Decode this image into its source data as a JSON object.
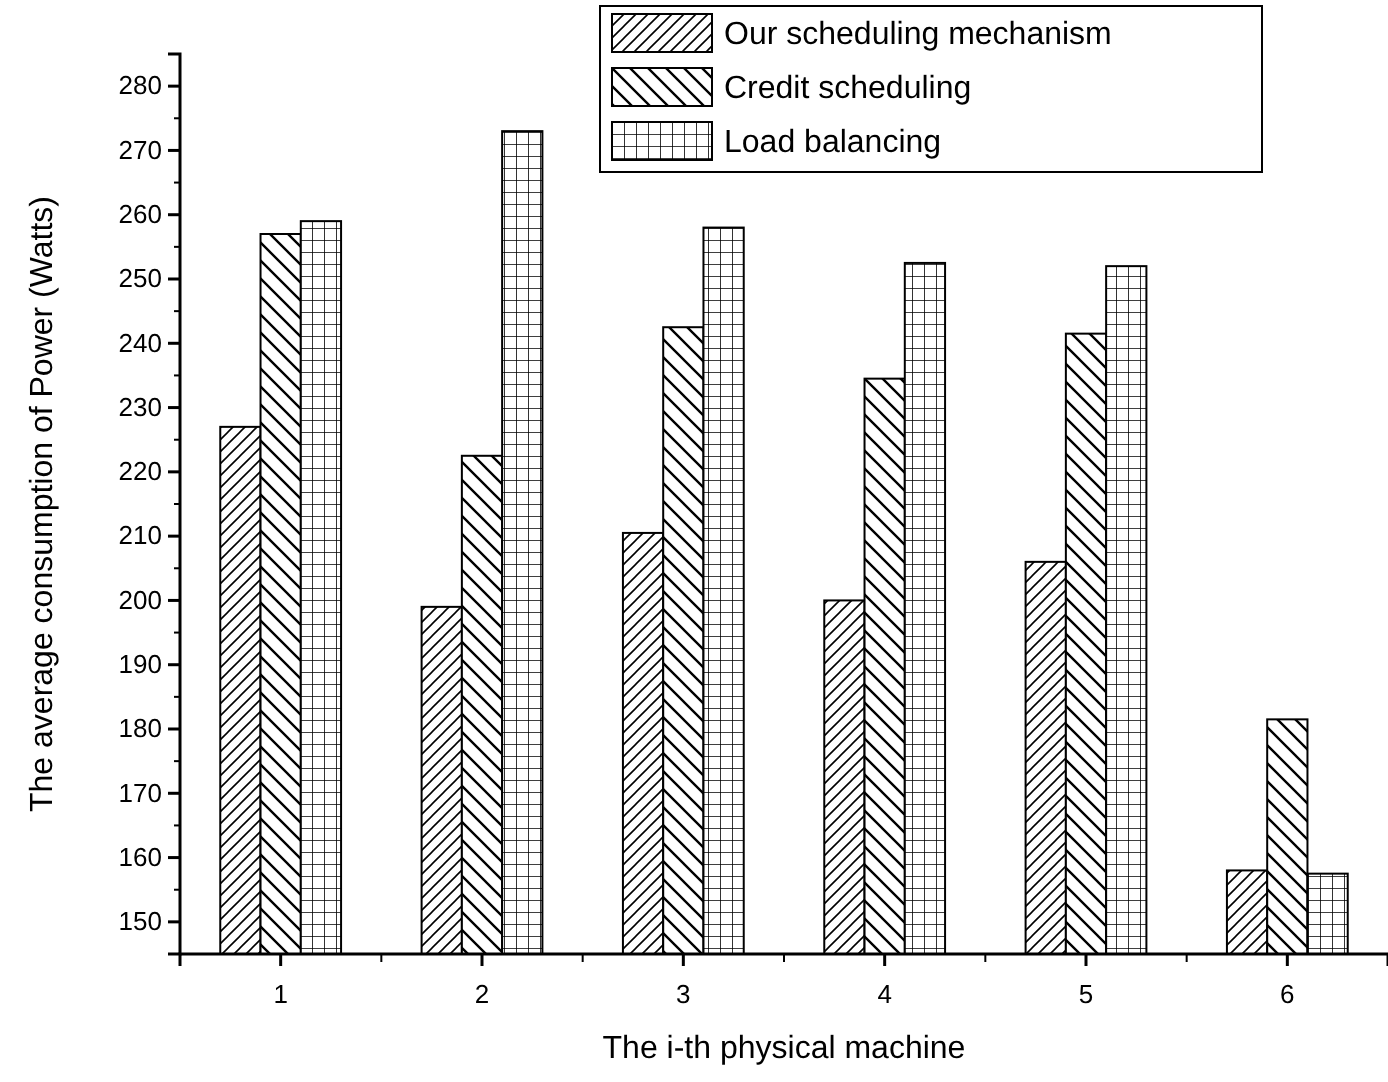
{
  "chart_data": {
    "type": "bar",
    "xlabel": "The i-th physical machine",
    "ylabel": "The average consumption of Power (Watts)",
    "categories": [
      "1",
      "2",
      "3",
      "4",
      "5",
      "6"
    ],
    "series": [
      {
        "name": "Our scheduling mechanism",
        "color": "#000000",
        "values": [
          227,
          199,
          210.5,
          200,
          206,
          158
        ]
      },
      {
        "name": "Credit scheduling",
        "color": "#000000",
        "values": [
          257,
          222.5,
          242.5,
          234.5,
          241.5,
          181.5
        ]
      },
      {
        "name": "Load balancing",
        "color": "#000000",
        "values": [
          259,
          273,
          258,
          252.5,
          252,
          157.5
        ]
      }
    ],
    "ylim": [
      145,
      285
    ],
    "yticks": [
      150,
      160,
      170,
      180,
      190,
      200,
      210,
      220,
      230,
      240,
      250,
      260,
      270,
      280
    ],
    "grid": false,
    "legend": "top right"
  }
}
